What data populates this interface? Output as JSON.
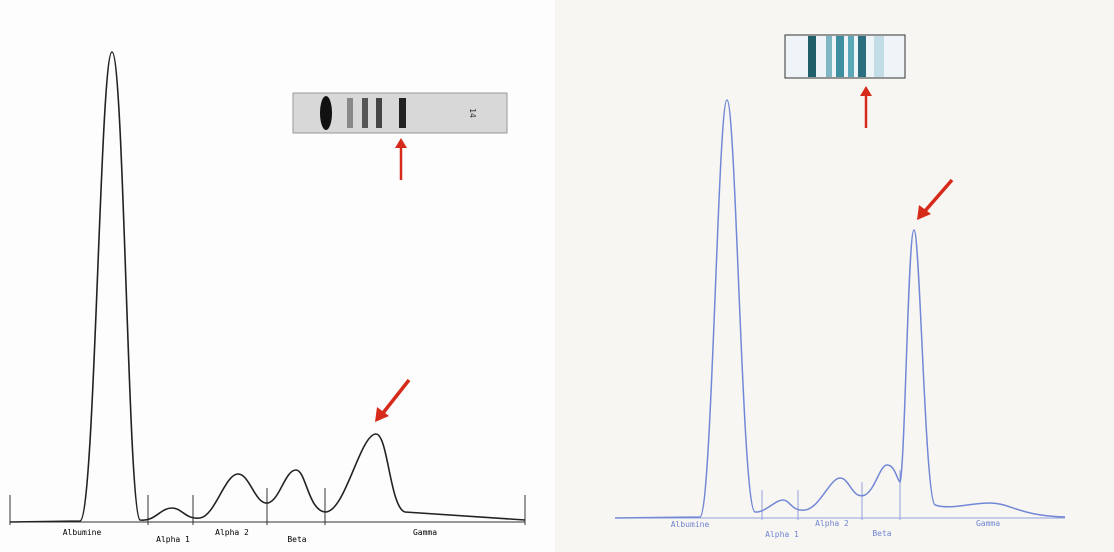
{
  "panels": [
    {
      "labels": [
        "Albumine",
        "Alpha 1",
        "Alpha 2",
        "Beta",
        "Gamma"
      ],
      "strip_label": "14"
    },
    {
      "labels": [
        "Albumine",
        "Alpha 1",
        "Alpha 2",
        "Beta",
        "Gamma"
      ]
    }
  ]
}
